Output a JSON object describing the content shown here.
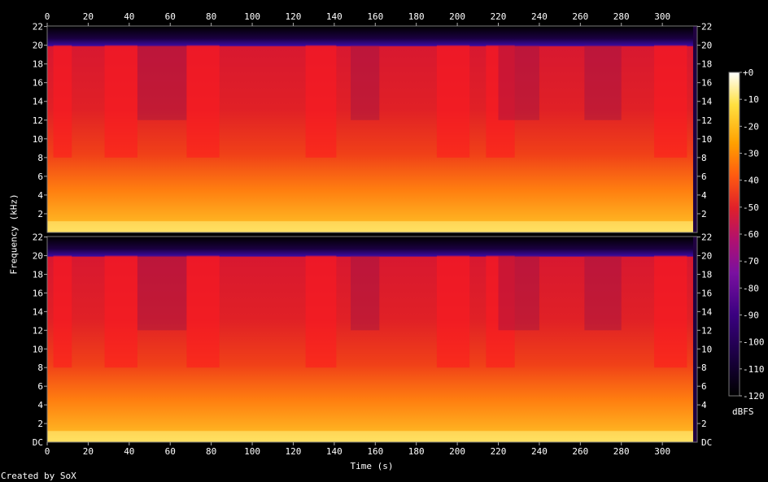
{
  "chart_data": {
    "type": "heatmap",
    "subtype": "spectrogram",
    "channels": 2,
    "x": {
      "label": "Time (s)",
      "range": [
        0,
        317
      ],
      "ticks": [
        0,
        20,
        40,
        60,
        80,
        100,
        120,
        140,
        160,
        180,
        200,
        220,
        240,
        260,
        280,
        300
      ]
    },
    "y": {
      "label": "Frequency (kHz)",
      "range": [
        0,
        22.05
      ],
      "ticks_top_channel": [
        "2",
        "4",
        "6",
        "8",
        "10",
        "12",
        "14",
        "16",
        "18",
        "20",
        "22"
      ],
      "ticks_bottom_channel": [
        "DC",
        "2",
        "4",
        "6",
        "8",
        "10",
        "12",
        "14",
        "16",
        "18",
        "20",
        "22"
      ]
    },
    "colorbar": {
      "unit": "dBFS",
      "range": [
        -120,
        0
      ],
      "ticks": [
        "+0",
        "-10",
        "-20",
        "-30",
        "-40",
        "-50",
        "-60",
        "-70",
        "-80",
        "-90",
        "-100",
        "-110",
        "-120"
      ]
    },
    "content_cutoff_khz": 20,
    "loud_sections_s": [
      [
        3,
        12
      ],
      [
        28,
        44
      ],
      [
        68,
        84
      ],
      [
        126,
        141
      ],
      [
        190,
        206
      ],
      [
        214,
        228
      ],
      [
        296,
        312
      ]
    ],
    "quiet_sections_s": [
      [
        44,
        68
      ],
      [
        148,
        162
      ],
      [
        220,
        240
      ],
      [
        262,
        280
      ]
    ],
    "background": "#000000",
    "colormap": [
      "#000000",
      "#1a0040",
      "#3a0080",
      "#7a10a0",
      "#b01070",
      "#e0202a",
      "#ff5a10",
      "#ffa000",
      "#ffe040",
      "#ffffff"
    ]
  },
  "credit": "Created by SoX"
}
